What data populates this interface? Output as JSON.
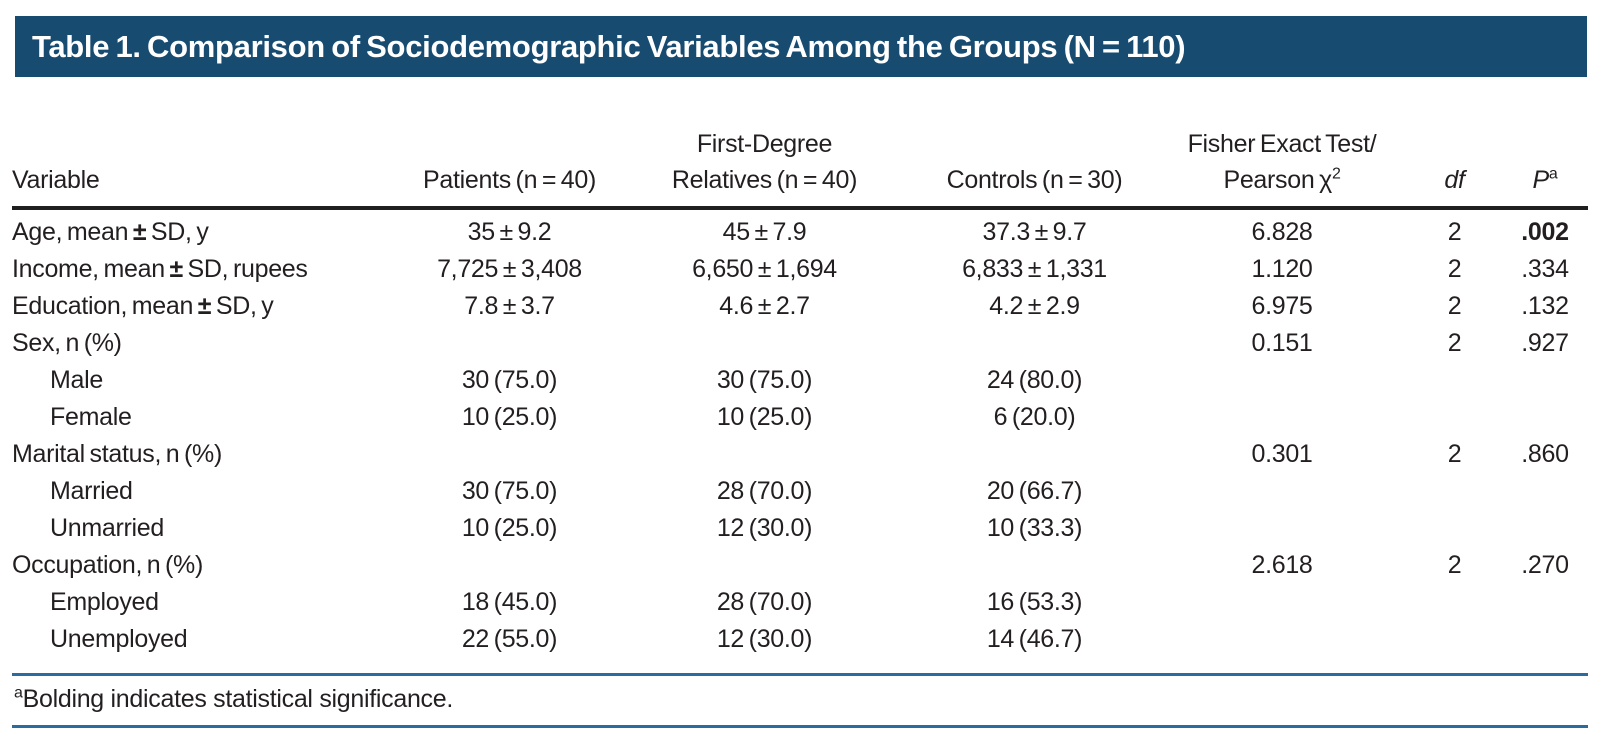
{
  "title": "Table 1. Comparison of Sociodemographic Variables Among the Groups (N = 110)",
  "colors": {
    "header_bg": "#174b70",
    "rule_blue": "#2e6b9d",
    "rule_black": "#1f1f1f",
    "text": "#231f20"
  },
  "table": {
    "columns": [
      {
        "key": "variable",
        "line1": "Variable",
        "align": "left"
      },
      {
        "key": "patients",
        "line1": "Patients (n = 40)"
      },
      {
        "key": "relatives",
        "line1": "First-Degree",
        "line2": "Relatives (n = 40)"
      },
      {
        "key": "controls",
        "line1": "Controls (n = 30)"
      },
      {
        "key": "test",
        "line1": "Fisher Exact Test/",
        "line2": "Pearson χ",
        "sup": "2"
      },
      {
        "key": "df",
        "line1": "df",
        "italic": true
      },
      {
        "key": "p",
        "line1": "P",
        "italic": true,
        "sup": "a"
      }
    ],
    "rows": [
      {
        "label": "Age, mean ± SD, y",
        "indent": false,
        "cells": [
          "35 ± 9.2",
          "45 ± 7.9",
          "37.3 ± 9.7",
          "6.828",
          "2",
          ".002"
        ],
        "bold_p": true
      },
      {
        "label": "Income, mean ± SD, rupees",
        "indent": false,
        "cells": [
          "7,725 ± 3,408",
          "6,650 ± 1,694",
          "6,833 ± 1,331",
          "1.120",
          "2",
          ".334"
        ],
        "bold_p": false
      },
      {
        "label": "Education, mean ± SD, y",
        "indent": false,
        "cells": [
          "7.8 ± 3.7",
          "4.6 ± 2.7",
          "4.2 ± 2.9",
          "6.975",
          "2",
          ".132"
        ],
        "bold_p": false
      },
      {
        "label": "Sex, n (%)",
        "indent": false,
        "cells": [
          "",
          "",
          "",
          "0.151",
          "2",
          ".927"
        ],
        "bold_p": false
      },
      {
        "label": "Male",
        "indent": true,
        "cells": [
          "30 (75.0)",
          "30 (75.0)",
          "24 (80.0)",
          "",
          "",
          ""
        ],
        "bold_p": false
      },
      {
        "label": "Female",
        "indent": true,
        "cells": [
          "10 (25.0)",
          "10 (25.0)",
          "6 (20.0)",
          "",
          "",
          ""
        ],
        "bold_p": false
      },
      {
        "label": "Marital status, n (%)",
        "indent": false,
        "cells": [
          "",
          "",
          "",
          "0.301",
          "2",
          ".860"
        ],
        "bold_p": false
      },
      {
        "label": "Married",
        "indent": true,
        "cells": [
          "30 (75.0)",
          "28 (70.0)",
          "20 (66.7)",
          "",
          "",
          ""
        ],
        "bold_p": false
      },
      {
        "label": "Unmarried",
        "indent": true,
        "cells": [
          "10 (25.0)",
          "12 (30.0)",
          "10 (33.3)",
          "",
          "",
          ""
        ],
        "bold_p": false
      },
      {
        "label": "Occupation, n (%)",
        "indent": false,
        "cells": [
          "",
          "",
          "",
          "2.618",
          "2",
          ".270"
        ],
        "bold_p": false
      },
      {
        "label": "Employed",
        "indent": true,
        "cells": [
          "18 (45.0)",
          "28 (70.0)",
          "16 (53.3)",
          "",
          "",
          ""
        ],
        "bold_p": false
      },
      {
        "label": "Unemployed",
        "indent": true,
        "cells": [
          "22 (55.0)",
          "12 (30.0)",
          "14 (46.7)",
          "",
          "",
          ""
        ],
        "bold_p": false
      }
    ]
  },
  "footnote": {
    "sup": "a",
    "text": "Bolding indicates statistical significance."
  }
}
